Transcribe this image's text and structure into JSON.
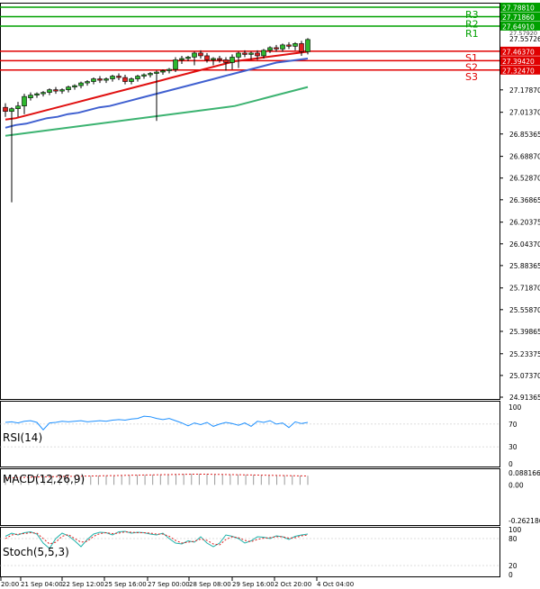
{
  "chart_data": {
    "type": "candlestick",
    "main": {
      "y_ticks": [
        "27.17870",
        "27.01370",
        "26.85365",
        "26.68870",
        "26.52870",
        "26.36865",
        "26.20375",
        "26.04370",
        "25.88365",
        "25.71870",
        "25.55870",
        "25.39865",
        "25.23375",
        "25.07370",
        "24.91365"
      ],
      "ylim": [
        24.91365,
        27.7881
      ],
      "current_price": "27.55726",
      "resistance_label_only": "27.57920",
      "levels": [
        {
          "name": "R3",
          "value": 27.7881,
          "label": "27.78810",
          "color": "#00a000"
        },
        {
          "name": "R2",
          "value": 27.7186,
          "label": "27.71860",
          "color": "#00a000"
        },
        {
          "name": "R1",
          "value": 27.6491,
          "label": "27.64910",
          "color": "#00a000"
        },
        {
          "name": "S1",
          "value": 27.4637,
          "label": "27.46370",
          "color": "#e00000"
        },
        {
          "name": "S2",
          "value": 27.3942,
          "label": "27.39420",
          "color": "#e00000"
        },
        {
          "name": "S3",
          "value": 27.3247,
          "label": "27.32470",
          "color": "#e00000"
        }
      ],
      "candles": [
        {
          "o": 27.05,
          "h": 27.08,
          "l": 26.98,
          "c": 27.02
        },
        {
          "o": 27.02,
          "h": 27.05,
          "l": 26.35,
          "c": 27.04
        },
        {
          "o": 27.04,
          "h": 27.09,
          "l": 26.98,
          "c": 27.06
        },
        {
          "o": 27.06,
          "h": 27.15,
          "l": 27.0,
          "c": 27.13
        },
        {
          "o": 27.12,
          "h": 27.16,
          "l": 27.1,
          "c": 27.14
        },
        {
          "o": 27.14,
          "h": 27.16,
          "l": 27.12,
          "c": 27.15
        },
        {
          "o": 27.15,
          "h": 27.17,
          "l": 27.13,
          "c": 27.16
        },
        {
          "o": 27.16,
          "h": 27.19,
          "l": 27.14,
          "c": 27.18
        },
        {
          "o": 27.18,
          "h": 27.2,
          "l": 27.15,
          "c": 27.17
        },
        {
          "o": 27.17,
          "h": 27.19,
          "l": 27.15,
          "c": 27.18
        },
        {
          "o": 27.18,
          "h": 27.21,
          "l": 27.16,
          "c": 27.2
        },
        {
          "o": 27.2,
          "h": 27.22,
          "l": 27.18,
          "c": 27.21
        },
        {
          "o": 27.21,
          "h": 27.24,
          "l": 27.19,
          "c": 27.23
        },
        {
          "o": 27.23,
          "h": 27.25,
          "l": 27.21,
          "c": 27.24
        },
        {
          "o": 27.24,
          "h": 27.27,
          "l": 27.22,
          "c": 27.26
        },
        {
          "o": 27.26,
          "h": 27.28,
          "l": 27.23,
          "c": 27.25
        },
        {
          "o": 27.25,
          "h": 27.27,
          "l": 27.23,
          "c": 27.26
        },
        {
          "o": 27.26,
          "h": 27.29,
          "l": 27.24,
          "c": 27.28
        },
        {
          "o": 27.28,
          "h": 27.3,
          "l": 27.25,
          "c": 27.27
        },
        {
          "o": 27.27,
          "h": 27.29,
          "l": 27.22,
          "c": 27.24
        },
        {
          "o": 27.24,
          "h": 27.27,
          "l": 27.22,
          "c": 27.26
        },
        {
          "o": 27.26,
          "h": 27.29,
          "l": 27.24,
          "c": 27.28
        },
        {
          "o": 27.28,
          "h": 27.3,
          "l": 27.26,
          "c": 27.29
        },
        {
          "o": 27.29,
          "h": 27.31,
          "l": 27.27,
          "c": 27.3
        },
        {
          "o": 27.3,
          "h": 27.32,
          "l": 26.95,
          "c": 27.31
        },
        {
          "o": 27.31,
          "h": 27.33,
          "l": 27.29,
          "c": 27.32
        },
        {
          "o": 27.32,
          "h": 27.34,
          "l": 27.3,
          "c": 27.33
        },
        {
          "o": 27.33,
          "h": 27.42,
          "l": 27.31,
          "c": 27.4
        },
        {
          "o": 27.4,
          "h": 27.43,
          "l": 27.37,
          "c": 27.41
        },
        {
          "o": 27.41,
          "h": 27.43,
          "l": 27.39,
          "c": 27.42
        },
        {
          "o": 27.42,
          "h": 27.46,
          "l": 27.36,
          "c": 27.45
        },
        {
          "o": 27.45,
          "h": 27.47,
          "l": 27.41,
          "c": 27.43
        },
        {
          "o": 27.43,
          "h": 27.45,
          "l": 27.38,
          "c": 27.4
        },
        {
          "o": 27.4,
          "h": 27.42,
          "l": 27.36,
          "c": 27.41
        },
        {
          "o": 27.41,
          "h": 27.43,
          "l": 27.38,
          "c": 27.4
        },
        {
          "o": 27.4,
          "h": 27.42,
          "l": 27.32,
          "c": 27.38
        },
        {
          "o": 27.38,
          "h": 27.44,
          "l": 27.33,
          "c": 27.42
        },
        {
          "o": 27.42,
          "h": 27.46,
          "l": 27.34,
          "c": 27.45
        },
        {
          "o": 27.45,
          "h": 27.47,
          "l": 27.42,
          "c": 27.44
        },
        {
          "o": 27.44,
          "h": 27.46,
          "l": 27.4,
          "c": 27.45
        },
        {
          "o": 27.45,
          "h": 27.47,
          "l": 27.4,
          "c": 27.43
        },
        {
          "o": 27.43,
          "h": 27.48,
          "l": 27.41,
          "c": 27.47
        },
        {
          "o": 27.47,
          "h": 27.5,
          "l": 27.45,
          "c": 27.49
        },
        {
          "o": 27.49,
          "h": 27.51,
          "l": 27.46,
          "c": 27.48
        },
        {
          "o": 27.48,
          "h": 27.52,
          "l": 27.46,
          "c": 27.51
        },
        {
          "o": 27.51,
          "h": 27.53,
          "l": 27.48,
          "c": 27.5
        },
        {
          "o": 27.5,
          "h": 27.53,
          "l": 27.47,
          "c": 27.52
        },
        {
          "o": 27.52,
          "h": 27.54,
          "l": 27.43,
          "c": 27.46
        },
        {
          "o": 27.46,
          "h": 27.56,
          "l": 27.44,
          "c": 27.55
        }
      ],
      "ma_red": [
        26.96,
        26.97,
        26.99,
        27.01,
        27.03,
        27.05,
        27.07,
        27.09,
        27.11,
        27.13,
        27.15,
        27.17,
        27.19,
        27.21,
        27.23,
        27.25,
        27.27,
        27.29,
        27.31,
        27.33,
        27.35,
        27.37,
        27.39,
        27.4,
        27.41,
        27.42,
        27.43,
        27.44,
        27.45,
        27.46
      ],
      "ma_blue": [
        26.9,
        26.92,
        26.93,
        26.95,
        26.97,
        26.98,
        27.0,
        27.01,
        27.03,
        27.05,
        27.06,
        27.08,
        27.1,
        27.12,
        27.14,
        27.16,
        27.18,
        27.2,
        27.22,
        27.24,
        27.26,
        27.28,
        27.3,
        27.32,
        27.34,
        27.36,
        27.38,
        27.39,
        27.4,
        27.41
      ],
      "ma_green": [
        26.84,
        26.85,
        26.86,
        26.87,
        26.88,
        26.89,
        26.9,
        26.91,
        26.92,
        26.93,
        26.94,
        26.95,
        26.96,
        26.97,
        26.98,
        26.99,
        27.0,
        27.01,
        27.02,
        27.03,
        27.04,
        27.05,
        27.06,
        27.08,
        27.1,
        27.12,
        27.14,
        27.16,
        27.18,
        27.2
      ]
    },
    "rsi": {
      "title": "RSI(14)",
      "ticks": [
        "100",
        "70",
        "30",
        "0"
      ],
      "ylim": [
        0,
        100
      ],
      "values": [
        73,
        74,
        72,
        75,
        76,
        73,
        60,
        72,
        73,
        75,
        74,
        75,
        76,
        74,
        75,
        76,
        75,
        77,
        78,
        77,
        79,
        80,
        84,
        83,
        80,
        78,
        80,
        76,
        72,
        67,
        72,
        69,
        73,
        66,
        70,
        73,
        71,
        68,
        72,
        66,
        75,
        73,
        76,
        70,
        72,
        64,
        74,
        71,
        73
      ]
    },
    "macd": {
      "title": "MACD(12,26,9)",
      "ticks": [
        "0.088166",
        "0.00",
        "-0.262186"
      ],
      "ylim": [
        -0.262186,
        0.088166
      ],
      "histogram": [
        0.054,
        0.056,
        0.058,
        0.06,
        0.061,
        0.062,
        0.062,
        0.063,
        0.064,
        0.065,
        0.066,
        0.067,
        0.068,
        0.069,
        0.07,
        0.071,
        0.072,
        0.073,
        0.074,
        0.075,
        0.076,
        0.078,
        0.08,
        0.081,
        0.082,
        0.081,
        0.08,
        0.079,
        0.078,
        0.077,
        0.076,
        0.075,
        0.074,
        0.073,
        0.072,
        0.071,
        0.07,
        0.069,
        0.068,
        0.067
      ],
      "signal": [
        0.05,
        0.052,
        0.054,
        0.056,
        0.058,
        0.059,
        0.06,
        0.061,
        0.062,
        0.063,
        0.064,
        0.065,
        0.066,
        0.067,
        0.068,
        0.069,
        0.07,
        0.071,
        0.072,
        0.073,
        0.074,
        0.075,
        0.076,
        0.077,
        0.078,
        0.078,
        0.078,
        0.077,
        0.076,
        0.075,
        0.074,
        0.073,
        0.072,
        0.071,
        0.07,
        0.069,
        0.068,
        0.067,
        0.066,
        0.065
      ]
    },
    "stoch": {
      "title": "Stoch(5,5,3)",
      "ticks": [
        "100",
        "80",
        "20",
        "0"
      ],
      "ylim": [
        0,
        100
      ],
      "k": [
        85,
        92,
        88,
        93,
        95,
        90,
        70,
        58,
        80,
        92,
        86,
        75,
        62,
        78,
        90,
        94,
        93,
        88,
        95,
        96,
        92,
        94,
        93,
        90,
        88,
        92,
        80,
        70,
        68,
        75,
        72,
        84,
        70,
        62,
        70,
        88,
        85,
        80,
        70,
        75,
        84,
        83,
        80,
        86,
        84,
        78,
        85,
        88,
        90
      ],
      "d": [
        80,
        88,
        90,
        91,
        93,
        92,
        80,
        68,
        72,
        85,
        89,
        80,
        72,
        74,
        85,
        91,
        93,
        91,
        92,
        95,
        94,
        93,
        93,
        92,
        90,
        90,
        85,
        76,
        70,
        72,
        74,
        79,
        76,
        68,
        66,
        78,
        84,
        82,
        76,
        73,
        78,
        81,
        82,
        84,
        84,
        81,
        82,
        86,
        88
      ]
    },
    "x_ticks": [
      "20:00",
      "21 Sep 04:00",
      "22 Sep 12:00",
      "25 Sep 16:00",
      "27 Sep 00:00",
      "28 Sep 08:00",
      "29 Sep 16:00",
      "2 Oct 20:00",
      "4 Oct 04:00"
    ]
  }
}
